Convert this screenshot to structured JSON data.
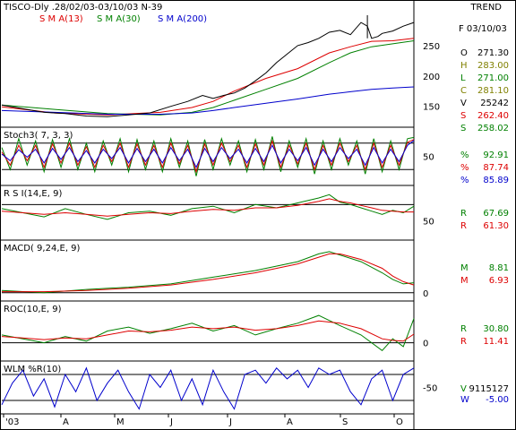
{
  "header": {
    "title": "TISCO-Dly .28/02/03-03/10/03  N-39",
    "right_label": "TREND",
    "legend": [
      {
        "label": "S M A(13)",
        "color": "#dd0000"
      },
      {
        "label": "S M A(30)",
        "color": "#008000"
      },
      {
        "label": "S M A(200)",
        "color": "#0000cc"
      }
    ]
  },
  "info_panel": {
    "date": "F 03/10/03",
    "rows": [
      {
        "label": "O",
        "value": "271.30",
        "color": "#000000"
      },
      {
        "label": "H",
        "value": "283.00",
        "color": "#808000"
      },
      {
        "label": "L",
        "value": "271.00",
        "color": "#008000"
      },
      {
        "label": "C",
        "value": "281.10",
        "color": "#808000"
      },
      {
        "label": "V",
        "value": "25242",
        "color": "#000000"
      },
      {
        "label": "S",
        "value": "262.40",
        "color": "#dd0000"
      },
      {
        "label": "S",
        "value": "258.02",
        "color": "#008000"
      }
    ]
  },
  "x_axis": {
    "ticks": [
      "'03",
      "A",
      "M",
      "J",
      "J",
      "A",
      "S",
      "O"
    ]
  },
  "chart_data": [
    {
      "type": "line",
      "panel": "price",
      "ylim": [
        120,
        300
      ],
      "yticks": [
        150,
        200,
        250
      ],
      "series": [
        {
          "name": "S M A(13)",
          "color": "#dd0000",
          "x": [
            0,
            25,
            50,
            75,
            90,
            100,
            110,
            125,
            140,
            155,
            165,
            175,
            185,
            195
          ],
          "y": [
            149,
            139,
            136,
            140,
            148,
            158,
            175,
            196,
            212,
            238,
            248,
            257,
            258,
            262
          ]
        },
        {
          "name": "S M A(30)",
          "color": "#008000",
          "x": [
            0,
            25,
            50,
            75,
            90,
            100,
            110,
            125,
            140,
            155,
            165,
            175,
            185,
            195
          ],
          "y": [
            152,
            145,
            138,
            136,
            140,
            148,
            160,
            178,
            196,
            222,
            238,
            248,
            253,
            258
          ]
        },
        {
          "name": "S M A(200)",
          "color": "#0000cc",
          "x": [
            0,
            25,
            50,
            75,
            90,
            100,
            110,
            125,
            140,
            155,
            165,
            175,
            185,
            195
          ],
          "y": [
            143,
            140,
            137,
            137,
            139,
            143,
            148,
            155,
            162,
            170,
            174,
            178,
            180,
            182
          ]
        },
        {
          "name": "",
          "color": "#000000",
          "x": [
            0,
            10,
            20,
            30,
            40,
            50,
            60,
            70,
            80,
            88,
            95,
            100,
            105,
            110,
            115,
            120,
            125,
            130,
            135,
            140,
            145,
            150,
            155,
            160,
            165,
            170,
            173,
            175,
            178,
            180,
            185,
            190,
            195
          ],
          "y": [
            152,
            146,
            140,
            138,
            134,
            133,
            136,
            139,
            150,
            158,
            168,
            163,
            168,
            172,
            180,
            192,
            205,
            222,
            236,
            250,
            255,
            262,
            272,
            275,
            268,
            288,
            282,
            262,
            265,
            270,
            274,
            282,
            288
          ]
        }
      ],
      "annotations": [
        {
          "x": 173,
          "y_low": 262,
          "y_high": 300
        }
      ]
    },
    {
      "type": "line",
      "panel": "stoch",
      "title": "Stoch3( 7, 3, 3)",
      "ylim": [
        -10,
        110
      ],
      "yticks": [
        50
      ],
      "reference_lines": [
        20,
        80
      ],
      "series": [
        {
          "name": "%",
          "color": "#008000",
          "value": "92.91",
          "x": [
            0,
            4,
            8,
            12,
            16,
            20,
            24,
            28,
            32,
            36,
            40,
            44,
            48,
            52,
            56,
            60,
            64,
            68,
            72,
            76,
            80,
            84,
            88,
            92,
            96,
            100,
            104,
            108,
            112,
            116,
            120,
            124,
            128,
            132,
            136,
            140,
            144,
            148,
            152,
            156,
            160,
            164,
            168,
            172,
            176,
            180,
            184,
            188,
            192,
            195
          ],
          "y": [
            70,
            20,
            90,
            30,
            85,
            15,
            88,
            25,
            90,
            20,
            80,
            15,
            85,
            30,
            90,
            15,
            88,
            20,
            85,
            15,
            90,
            25,
            85,
            5,
            88,
            20,
            90,
            30,
            85,
            15,
            88,
            20,
            95,
            15,
            85,
            25,
            90,
            10,
            85,
            20,
            90,
            30,
            85,
            10,
            90,
            15,
            85,
            20,
            90,
            93
          ]
        },
        {
          "name": "%",
          "color": "#dd0000",
          "value": "87.74",
          "x": [
            0,
            4,
            8,
            12,
            16,
            20,
            24,
            28,
            32,
            36,
            40,
            44,
            48,
            52,
            56,
            60,
            64,
            68,
            72,
            76,
            80,
            84,
            88,
            92,
            96,
            100,
            104,
            108,
            112,
            116,
            120,
            124,
            128,
            132,
            136,
            140,
            144,
            148,
            152,
            156,
            160,
            164,
            168,
            172,
            176,
            180,
            184,
            188,
            192,
            195
          ],
          "y": [
            60,
            30,
            75,
            40,
            75,
            25,
            78,
            35,
            80,
            30,
            72,
            25,
            75,
            38,
            80,
            25,
            78,
            30,
            75,
            25,
            80,
            33,
            75,
            15,
            78,
            30,
            80,
            38,
            75,
            25,
            78,
            30,
            85,
            25,
            75,
            33,
            80,
            20,
            75,
            30,
            80,
            38,
            75,
            20,
            80,
            25,
            75,
            30,
            82,
            88
          ]
        },
        {
          "name": "%",
          "color": "#0000cc",
          "value": "85.89",
          "x": [
            0,
            4,
            8,
            12,
            16,
            20,
            24,
            28,
            32,
            36,
            40,
            44,
            48,
            52,
            56,
            60,
            64,
            68,
            72,
            76,
            80,
            84,
            88,
            92,
            96,
            100,
            104,
            108,
            112,
            116,
            120,
            124,
            128,
            132,
            136,
            140,
            144,
            148,
            152,
            156,
            160,
            164,
            168,
            172,
            176,
            180,
            184,
            188,
            192,
            195
          ],
          "y": [
            55,
            40,
            65,
            48,
            66,
            35,
            68,
            43,
            70,
            38,
            63,
            35,
            66,
            45,
            70,
            35,
            68,
            38,
            66,
            35,
            70,
            40,
            66,
            25,
            68,
            38,
            70,
            45,
            66,
            35,
            68,
            38,
            75,
            35,
            66,
            40,
            70,
            30,
            66,
            38,
            70,
            45,
            66,
            30,
            70,
            35,
            66,
            38,
            75,
            86
          ]
        }
      ]
    },
    {
      "type": "line",
      "panel": "rsi",
      "title": "R S I(14,E, 9)",
      "ylim": [
        30,
        90
      ],
      "yticks": [
        50
      ],
      "reference_lines": [
        70
      ],
      "series": [
        {
          "name": "R",
          "color": "#008000",
          "value": "67.69",
          "x": [
            0,
            10,
            20,
            30,
            40,
            50,
            60,
            70,
            80,
            90,
            100,
            110,
            120,
            130,
            140,
            150,
            155,
            160,
            165,
            170,
            175,
            180,
            185,
            190,
            195
          ],
          "y": [
            65,
            60,
            55,
            65,
            58,
            52,
            60,
            62,
            57,
            65,
            68,
            60,
            70,
            66,
            72,
            78,
            82,
            73,
            70,
            66,
            62,
            58,
            63,
            60,
            68
          ]
        },
        {
          "name": "R",
          "color": "#dd0000",
          "value": "61.30",
          "x": [
            0,
            10,
            20,
            30,
            40,
            50,
            60,
            70,
            80,
            90,
            100,
            110,
            120,
            130,
            140,
            150,
            155,
            160,
            165,
            170,
            175,
            180,
            185,
            190,
            195
          ],
          "y": [
            62,
            60,
            58,
            60,
            58,
            56,
            58,
            60,
            59,
            62,
            64,
            63,
            66,
            66,
            69,
            74,
            77,
            74,
            72,
            69,
            66,
            63,
            62,
            61,
            61
          ]
        }
      ]
    },
    {
      "type": "line",
      "panel": "macd",
      "title": "MACD( 9,24,E, 9)",
      "ylim": [
        -5,
        45
      ],
      "yticks": [
        0
      ],
      "reference_lines": [
        0
      ],
      "series": [
        {
          "name": "M",
          "color": "#008000",
          "value": "8.81",
          "x": [
            0,
            20,
            40,
            60,
            80,
            100,
            120,
            140,
            150,
            155,
            160,
            170,
            180,
            185,
            190,
            195
          ],
          "y": [
            2,
            0,
            3,
            5,
            8,
            14,
            20,
            28,
            35,
            37,
            34,
            28,
            18,
            12,
            8,
            9
          ]
        },
        {
          "name": "M",
          "color": "#dd0000",
          "value": "6.93",
          "x": [
            0,
            20,
            40,
            60,
            80,
            100,
            120,
            140,
            150,
            155,
            160,
            170,
            180,
            185,
            190,
            195
          ],
          "y": [
            1,
            1,
            2,
            4,
            7,
            12,
            18,
            26,
            32,
            35,
            35,
            30,
            22,
            15,
            10,
            7
          ]
        }
      ]
    },
    {
      "type": "line",
      "panel": "roc",
      "title": "ROC(10,E, 9)",
      "ylim": [
        -20,
        50
      ],
      "yticks": [
        0
      ],
      "reference_lines": [
        0
      ],
      "series": [
        {
          "name": "R",
          "color": "#008000",
          "value": "30.80",
          "x": [
            0,
            10,
            20,
            30,
            40,
            50,
            60,
            70,
            80,
            90,
            100,
            110,
            120,
            130,
            140,
            150,
            160,
            170,
            180,
            185,
            190,
            195
          ],
          "y": [
            10,
            5,
            0,
            8,
            2,
            15,
            20,
            12,
            18,
            25,
            15,
            22,
            10,
            18,
            25,
            35,
            22,
            10,
            -10,
            5,
            -5,
            31
          ]
        },
        {
          "name": "R",
          "color": "#dd0000",
          "value": "11.41",
          "x": [
            0,
            10,
            20,
            30,
            40,
            50,
            60,
            70,
            80,
            90,
            100,
            110,
            120,
            130,
            140,
            150,
            160,
            170,
            180,
            185,
            190,
            195
          ],
          "y": [
            8,
            6,
            4,
            6,
            5,
            10,
            15,
            14,
            16,
            20,
            18,
            20,
            16,
            18,
            22,
            28,
            25,
            18,
            5,
            3,
            2,
            11
          ]
        }
      ]
    },
    {
      "type": "line",
      "panel": "wlm",
      "title": "WLM %R(10)",
      "ylim": [
        -105,
        5
      ],
      "yticks": [
        -50
      ],
      "reference_lines": [
        -20,
        -80
      ],
      "series": [
        {
          "name": "W",
          "color": "#0000cc",
          "value": "-5.00",
          "x": [
            0,
            5,
            10,
            15,
            20,
            25,
            30,
            35,
            40,
            45,
            50,
            55,
            60,
            65,
            70,
            75,
            80,
            85,
            90,
            95,
            100,
            105,
            110,
            115,
            120,
            125,
            130,
            135,
            140,
            145,
            150,
            155,
            160,
            165,
            170,
            175,
            180,
            185,
            190,
            195
          ],
          "y": [
            -90,
            -40,
            -10,
            -70,
            -30,
            -95,
            -20,
            -60,
            -5,
            -80,
            -40,
            -10,
            -60,
            -100,
            -20,
            -50,
            -10,
            -80,
            -30,
            -90,
            -10,
            -60,
            -100,
            -20,
            -10,
            -40,
            -5,
            -30,
            -10,
            -50,
            -5,
            -20,
            -10,
            -60,
            -90,
            -30,
            -10,
            -80,
            -20,
            -5
          ]
        }
      ],
      "extra_labels": [
        {
          "label": "V",
          "value": "9115127"
        }
      ]
    }
  ]
}
